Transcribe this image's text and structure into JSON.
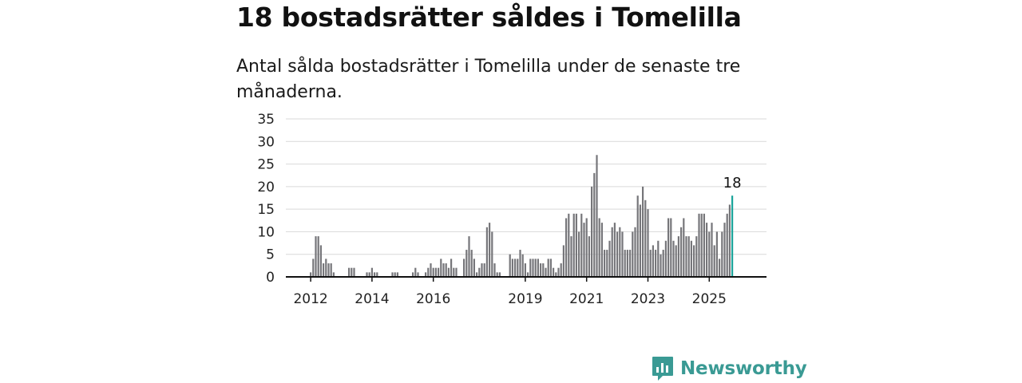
{
  "header": {
    "title": "18 bostadsrätter såldes i Tomelilla",
    "subtitle": "Antal sålda bostadsrätter i Tomelilla under de senaste tre månaderna."
  },
  "logo": {
    "text": "Newsworthy",
    "icon": "bar-chart-icon",
    "color": "#3a9a94"
  },
  "colors": {
    "bar": "#76767a",
    "highlight": "#1aa49a",
    "grid": "#d9d9d9",
    "axis": "#111111"
  },
  "chart_data": {
    "type": "bar",
    "x_start": "2012-01",
    "x_tick_labels": [
      "2012",
      "2014",
      "2016",
      "2019",
      "2021",
      "2023",
      "2025"
    ],
    "x_tick_dates": [
      "2012-01",
      "2014-01",
      "2016-01",
      "2019-01",
      "2021-01",
      "2023-01",
      "2025-01"
    ],
    "y_ticks": [
      0,
      5,
      10,
      15,
      20,
      25,
      30,
      35
    ],
    "ylim": [
      0,
      35
    ],
    "highlight_label": "18",
    "values": [
      1,
      4,
      9,
      9,
      7,
      3,
      4,
      3,
      3,
      1,
      0,
      0,
      0,
      0,
      0,
      2,
      2,
      2,
      0,
      0,
      0,
      0,
      1,
      1,
      2,
      1,
      1,
      0,
      0,
      0,
      0,
      0,
      1,
      1,
      1,
      0,
      0,
      0,
      0,
      0,
      1,
      2,
      1,
      0,
      0,
      1,
      2,
      3,
      2,
      2,
      2,
      4,
      3,
      3,
      2,
      4,
      2,
      2,
      0,
      0,
      4,
      6,
      9,
      6,
      4,
      1,
      2,
      3,
      3,
      11,
      12,
      10,
      3,
      1,
      1,
      0,
      0,
      0,
      5,
      4,
      4,
      4,
      6,
      5,
      3,
      1,
      4,
      4,
      4,
      4,
      3,
      3,
      2,
      4,
      4,
      2,
      1,
      2,
      3,
      7,
      13,
      14,
      9,
      14,
      14,
      10,
      14,
      12,
      13,
      9,
      20,
      23,
      27,
      13,
      12,
      6,
      6,
      8,
      11,
      12,
      10,
      11,
      10,
      6,
      6,
      6,
      10,
      11,
      18,
      16,
      20,
      17,
      15,
      6,
      7,
      6,
      8,
      5,
      6,
      8,
      13,
      13,
      8,
      7,
      9,
      11,
      13,
      9,
      9,
      8,
      7,
      9,
      14,
      14,
      14,
      12,
      10,
      12,
      7,
      10,
      4,
      10,
      12,
      14,
      16,
      18
    ]
  }
}
